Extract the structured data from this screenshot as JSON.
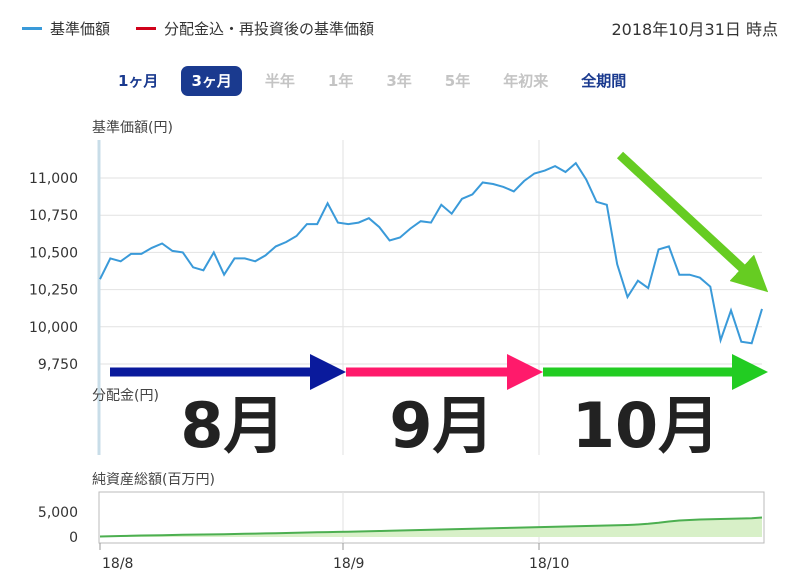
{
  "legend": [
    {
      "label": "基準価額",
      "color": "#3a9ad9"
    },
    {
      "label": "分配金込・再投資後の基準価額",
      "color": "#d0021b"
    }
  ],
  "as_of": "2018年10月31日 時点",
  "periods": [
    {
      "label": "1ヶ月",
      "state": "enabled"
    },
    {
      "label": "3ヶ月",
      "state": "active"
    },
    {
      "label": "半年",
      "state": "disabled"
    },
    {
      "label": "1年",
      "state": "disabled"
    },
    {
      "label": "3年",
      "state": "disabled"
    },
    {
      "label": "5年",
      "state": "disabled"
    },
    {
      "label": "年初来",
      "state": "disabled"
    },
    {
      "label": "全期間",
      "state": "enabled"
    }
  ],
  "months": [
    "8月",
    "9月",
    "10月"
  ],
  "colors": {
    "nav_line": "#3a9ad9",
    "assets_line": "#4caf50",
    "assets_fill": "#d8f0c8",
    "arrow_aug": "#0a1a9c",
    "arrow_sep": "#ff1a6b",
    "arrow_oct": "#22cc22",
    "arrow_trend": "#66cc22"
  },
  "chart_data": [
    {
      "type": "line",
      "ylabel": "基準価額(円)",
      "ylim": [
        9750,
        11000
      ],
      "yticks": [
        9750,
        10000,
        10250,
        10500,
        10750,
        11000
      ],
      "ytick_labels": [
        "9,750",
        "10,000",
        "10,250",
        "10,500",
        "10,750",
        "11,000"
      ],
      "series": [
        {
          "name": "基準価額",
          "values": [
            10320,
            10460,
            10440,
            10490,
            10490,
            10530,
            10560,
            10510,
            10500,
            10400,
            10380,
            10500,
            10350,
            10460,
            10460,
            10440,
            10480,
            10540,
            10570,
            10610,
            10690,
            10690,
            10830,
            10700,
            10690,
            10700,
            10730,
            10670,
            10580,
            10600,
            10660,
            10710,
            10700,
            10820,
            10760,
            10860,
            10890,
            10970,
            10960,
            10940,
            10910,
            10980,
            11030,
            11050,
            11080,
            11040,
            11100,
            10990,
            10840,
            10820,
            10420,
            10200,
            10310,
            10260,
            10520,
            10540,
            10350,
            10350,
            10330,
            10270,
            9910,
            10110,
            9900,
            9890,
            10120
          ]
        }
      ]
    },
    {
      "type": "bar",
      "ylabel": "分配金(円)",
      "series": [
        {
          "name": "分配金",
          "values": []
        }
      ]
    },
    {
      "type": "area",
      "ylabel": "純資産総額(百万円)",
      "ylim": [
        0,
        5000
      ],
      "yticks": [
        0,
        5000
      ],
      "ytick_labels": [
        "0",
        "5,000"
      ],
      "x_tick_labels": [
        "18/8",
        "18/9",
        "18/10"
      ],
      "series": [
        {
          "name": "純資産総額",
          "values": [
            100,
            150,
            200,
            250,
            300,
            330,
            360,
            400,
            440,
            470,
            500,
            530,
            560,
            600,
            640,
            680,
            720,
            760,
            800,
            850,
            900,
            940,
            980,
            1020,
            1060,
            1100,
            1150,
            1200,
            1250,
            1300,
            1350,
            1400,
            1450,
            1500,
            1550,
            1600,
            1650,
            1700,
            1750,
            1800,
            1850,
            1900,
            1950,
            2000,
            2050,
            2100,
            2150,
            2200,
            2250,
            2300,
            2350,
            2400,
            2500,
            2650,
            2850,
            3100,
            3300,
            3400,
            3500,
            3550,
            3600,
            3650,
            3700,
            3750,
            3900
          ]
        }
      ]
    }
  ]
}
